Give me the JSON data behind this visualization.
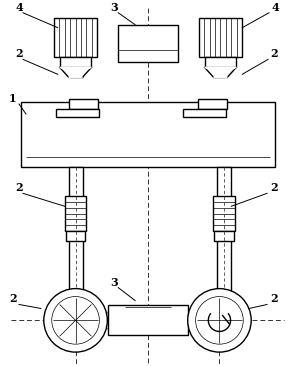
{
  "fig_width": 2.96,
  "fig_height": 3.66,
  "dpi": 100,
  "bg_color": "#ffffff",
  "line_color": "#000000",
  "line_width": 1.0,
  "thin_line": 0.5
}
